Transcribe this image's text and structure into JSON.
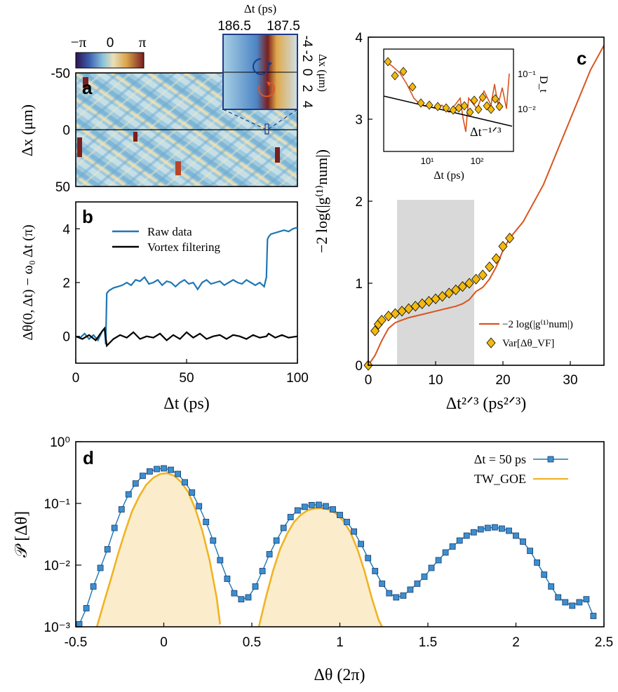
{
  "chart_data": [
    {
      "panel": "a",
      "type": "heatmap",
      "ylabel": "Δx (μm)",
      "yticks": [
        "-50",
        "0",
        "50"
      ],
      "colorbar": {
        "labels": [
          "−π",
          "0",
          "π"
        ],
        "colors": [
          "#2e1450",
          "#3b5fb0",
          "#8cc3dd",
          "#e8e0b8",
          "#d9a24a",
          "#7a1f1f"
        ]
      },
      "inset": {
        "xlabel": "Δt (ps)",
        "xticks": [
          "186.5",
          "187.5"
        ],
        "ylabel": "Δx (μm)",
        "yticks": [
          "-4",
          "-2",
          "0",
          "2",
          "4"
        ]
      }
    },
    {
      "panel": "b",
      "type": "line",
      "xlabel": "Δt (ps)",
      "ylabel": "Δθ(0, Δt) − ω₀ Δt  (π)",
      "xlim": [
        0,
        100
      ],
      "ylim": [
        -1,
        5
      ],
      "xticks": [
        "0",
        "50",
        "100"
      ],
      "yticks": [
        "0",
        "2",
        "4"
      ],
      "legend": [
        "Raw data",
        "Vortex filtering"
      ],
      "series": [
        {
          "name": "Raw data",
          "color": "#1f77b4",
          "x": [
            0,
            2,
            4,
            6,
            8,
            10,
            12,
            13,
            13.5,
            14,
            15,
            17,
            19,
            21,
            23,
            25,
            27,
            29,
            31,
            33,
            35,
            37,
            39,
            41,
            43,
            45,
            47,
            49,
            51,
            53,
            55,
            57,
            59,
            61,
            63,
            65,
            67,
            69,
            71,
            73,
            75,
            77,
            79,
            81,
            83,
            85,
            86,
            86.5,
            87,
            88,
            90,
            92,
            94,
            96,
            98,
            100
          ],
          "y": [
            0,
            -0.05,
            0.1,
            -0.1,
            0.05,
            -0.15,
            0.2,
            0.3,
            -0.3,
            1.6,
            1.7,
            1.8,
            1.85,
            1.9,
            2.0,
            1.9,
            2.1,
            2.05,
            2.2,
            1.95,
            2.0,
            2.1,
            1.9,
            2.05,
            2.0,
            1.85,
            2.0,
            2.1,
            1.95,
            2.0,
            1.75,
            2.0,
            2.1,
            1.95,
            2.0,
            2.05,
            1.9,
            2.0,
            2.1,
            2.0,
            1.95,
            2.1,
            2.0,
            1.9,
            2.0,
            1.85,
            2.2,
            3.6,
            3.7,
            3.8,
            3.85,
            3.9,
            3.95,
            3.9,
            4.0,
            4.05
          ]
        },
        {
          "name": "Vortex filtering",
          "color": "#000000",
          "x": [
            0,
            3,
            6,
            9,
            12,
            13,
            14,
            17,
            20,
            23,
            26,
            29,
            32,
            35,
            38,
            41,
            44,
            47,
            50,
            53,
            56,
            59,
            62,
            65,
            68,
            71,
            74,
            77,
            80,
            83,
            86,
            87,
            90,
            93,
            96,
            100
          ],
          "y": [
            0,
            -0.1,
            0.05,
            -0.15,
            0.2,
            0.3,
            -0.35,
            -0.1,
            0.05,
            -0.05,
            0.15,
            -0.1,
            0.0,
            -0.05,
            0.1,
            -0.15,
            0.05,
            -0.1,
            0.15,
            -0.05,
            0.1,
            -0.1,
            0.0,
            0.05,
            -0.1,
            0.05,
            0.0,
            -0.1,
            0.05,
            -0.05,
            0.0,
            0.1,
            -0.05,
            0.05,
            -0.05,
            0.0
          ]
        }
      ]
    },
    {
      "panel": "c",
      "type": "line",
      "xlabel": "Δt²ᐟ³ (ps²ᐟ³)",
      "ylabel": "−2 log(|g⁽¹⁾num|)",
      "xlim": [
        0,
        35
      ],
      "ylim": [
        0,
        4
      ],
      "xticks": [
        "0",
        "10",
        "20",
        "30"
      ],
      "yticks": [
        "0",
        "1",
        "2",
        "3",
        "4"
      ],
      "shaded_band": [
        4,
        16
      ],
      "legend": [
        "−2 log(|g⁽¹⁾num|)",
        "Var[Δθ_VF]"
      ],
      "series": [
        {
          "name": "−2 log(|g⁽¹⁾num|)",
          "color": "#d9541e",
          "x": [
            0,
            1,
            2,
            3,
            4,
            5,
            6,
            8,
            10,
            12,
            13,
            14,
            15,
            16,
            17,
            18,
            19,
            20,
            21,
            22,
            23,
            24,
            25,
            26,
            27,
            28,
            29,
            30,
            31,
            32,
            33,
            34,
            35
          ],
          "y": [
            0,
            0.12,
            0.3,
            0.45,
            0.52,
            0.55,
            0.58,
            0.62,
            0.66,
            0.7,
            0.72,
            0.75,
            0.8,
            0.9,
            0.95,
            1.05,
            1.2,
            1.4,
            1.55,
            1.65,
            1.75,
            1.9,
            2.05,
            2.2,
            2.4,
            2.6,
            2.8,
            3.0,
            3.2,
            3.4,
            3.6,
            3.75,
            3.9
          ]
        },
        {
          "name": "Var[Δθ_VF]",
          "color": "#f2b90e",
          "x": [
            0,
            1,
            1.5,
            2,
            3,
            4,
            5,
            6,
            7,
            8,
            9,
            10,
            11,
            12,
            13,
            14,
            15,
            16,
            17,
            18,
            19,
            20,
            21
          ],
          "y": [
            0,
            0.42,
            0.5,
            0.55,
            0.6,
            0.63,
            0.66,
            0.69,
            0.72,
            0.75,
            0.78,
            0.81,
            0.84,
            0.88,
            0.92,
            0.96,
            1.0,
            1.05,
            1.1,
            1.2,
            1.3,
            1.45,
            1.55
          ]
        }
      ],
      "inset": {
        "xlabel": "Δt (ps)",
        "ylabel": "D_t",
        "xticks": [
          "10¹",
          "10²"
        ],
        "yticks": [
          "10⁻²",
          "10⁻¹"
        ],
        "annotation": "Δt⁻¹ᐟ³"
      }
    },
    {
      "panel": "d",
      "type": "line",
      "xlabel": "Δθ (2π)",
      "ylabel": "𝒫 [Δθ]",
      "xlim": [
        -0.5,
        2.5
      ],
      "ylim": [
        0.001,
        1
      ],
      "yscale": "log",
      "xticks": [
        "-0.5",
        "0",
        "0.5",
        "1",
        "1.5",
        "2",
        "2.5"
      ],
      "yticks": [
        "10⁰",
        "10⁻¹",
        "10⁻²",
        "10⁻³"
      ],
      "legend": [
        "Δt = 50 ps",
        "TW_GOE"
      ],
      "series": [
        {
          "name": "Δt = 50 ps",
          "color": "#1f77b4",
          "x": [
            -0.48,
            -0.44,
            -0.4,
            -0.36,
            -0.32,
            -0.28,
            -0.24,
            -0.2,
            -0.16,
            -0.12,
            -0.08,
            -0.04,
            0.0,
            0.04,
            0.08,
            0.12,
            0.16,
            0.2,
            0.24,
            0.28,
            0.32,
            0.36,
            0.4,
            0.44,
            0.48,
            0.52,
            0.56,
            0.6,
            0.64,
            0.68,
            0.72,
            0.76,
            0.8,
            0.84,
            0.88,
            0.92,
            0.96,
            1.0,
            1.04,
            1.08,
            1.12,
            1.16,
            1.2,
            1.24,
            1.28,
            1.32,
            1.36,
            1.4,
            1.44,
            1.48,
            1.52,
            1.56,
            1.6,
            1.64,
            1.68,
            1.72,
            1.76,
            1.8,
            1.84,
            1.88,
            1.92,
            1.96,
            2.0,
            2.04,
            2.08,
            2.12,
            2.16,
            2.2,
            2.24,
            2.28,
            2.32,
            2.36,
            2.4,
            2.44
          ],
          "y": [
            0.0011,
            0.002,
            0.0045,
            0.009,
            0.018,
            0.04,
            0.08,
            0.14,
            0.21,
            0.28,
            0.33,
            0.36,
            0.37,
            0.35,
            0.3,
            0.22,
            0.15,
            0.09,
            0.05,
            0.025,
            0.012,
            0.006,
            0.0035,
            0.0028,
            0.003,
            0.0045,
            0.008,
            0.015,
            0.025,
            0.04,
            0.06,
            0.077,
            0.088,
            0.094,
            0.095,
            0.09,
            0.08,
            0.065,
            0.05,
            0.035,
            0.022,
            0.013,
            0.008,
            0.005,
            0.0035,
            0.003,
            0.0032,
            0.004,
            0.005,
            0.0065,
            0.009,
            0.012,
            0.016,
            0.02,
            0.025,
            0.03,
            0.034,
            0.038,
            0.04,
            0.041,
            0.039,
            0.036,
            0.03,
            0.024,
            0.017,
            0.011,
            0.007,
            0.0045,
            0.003,
            0.0025,
            0.0022,
            0.0025,
            0.0028,
            0.0015
          ]
        },
        {
          "name": "TW_GOE",
          "color": "#f0b323",
          "x": [
            -0.38,
            -0.34,
            -0.3,
            -0.26,
            -0.22,
            -0.18,
            -0.14,
            -0.1,
            -0.06,
            -0.02,
            0.02,
            0.06,
            0.1,
            0.14,
            0.18,
            0.22,
            0.26,
            0.3,
            0.32,
            0.54,
            0.58,
            0.62,
            0.66,
            0.7,
            0.74,
            0.78,
            0.82,
            0.86,
            0.9,
            0.94,
            0.98,
            1.02,
            1.06,
            1.1,
            1.14,
            1.18,
            1.22,
            1.24
          ],
          "y": [
            0.001,
            0.0025,
            0.006,
            0.015,
            0.035,
            0.075,
            0.13,
            0.2,
            0.26,
            0.3,
            0.31,
            0.28,
            0.22,
            0.15,
            0.08,
            0.035,
            0.012,
            0.003,
            0.0011,
            0.001,
            0.003,
            0.008,
            0.018,
            0.032,
            0.05,
            0.066,
            0.078,
            0.083,
            0.084,
            0.079,
            0.068,
            0.052,
            0.034,
            0.018,
            0.008,
            0.003,
            0.0013,
            0.001
          ]
        }
      ]
    }
  ]
}
